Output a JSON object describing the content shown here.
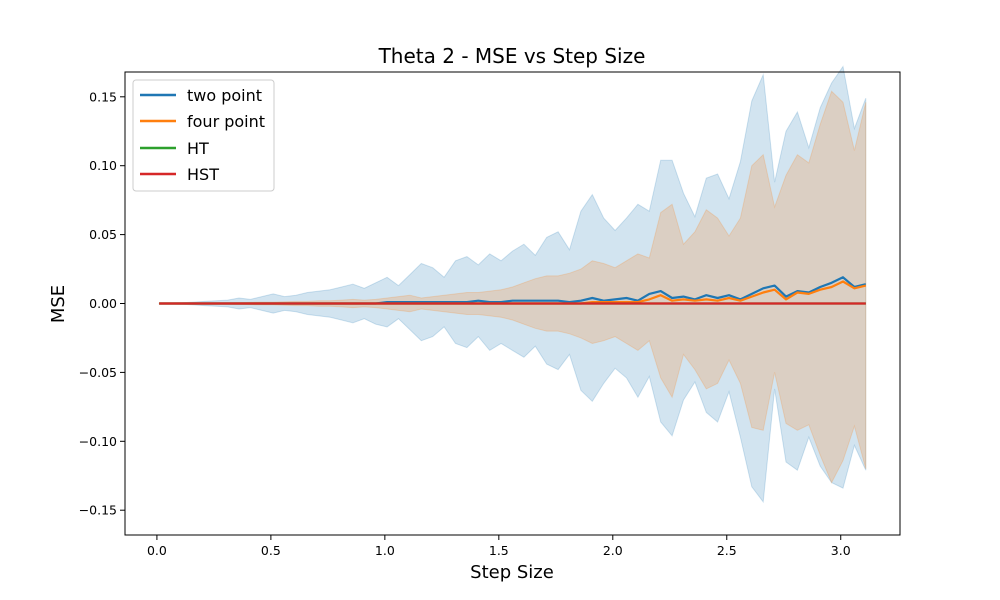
{
  "chart_data": {
    "type": "line",
    "title": "Theta 2 - MSE vs Step Size",
    "xlabel": "Step Size",
    "ylabel": "MSE",
    "xlim": [
      -0.14,
      3.26
    ],
    "ylim": [
      -0.168,
      0.168
    ],
    "xticks": [
      0.0,
      0.5,
      1.0,
      1.5,
      2.0,
      2.5,
      3.0
    ],
    "xtick_labels": [
      "0.0",
      "0.5",
      "1.0",
      "1.5",
      "2.0",
      "2.5",
      "3.0"
    ],
    "yticks": [
      -0.15,
      -0.1,
      -0.05,
      0.0,
      0.05,
      0.1,
      0.15
    ],
    "ytick_labels": [
      "−0.15",
      "−0.10",
      "−0.05",
      "0.00",
      "0.05",
      "0.10",
      "0.15"
    ],
    "grid": false,
    "legend_position": "upper-left",
    "x": [
      0.01,
      0.06,
      0.11,
      0.16,
      0.21,
      0.26,
      0.31,
      0.36,
      0.41,
      0.46,
      0.51,
      0.56,
      0.61,
      0.66,
      0.71,
      0.76,
      0.81,
      0.86,
      0.91,
      0.96,
      1.01,
      1.06,
      1.11,
      1.16,
      1.21,
      1.26,
      1.31,
      1.36,
      1.41,
      1.46,
      1.51,
      1.56,
      1.61,
      1.66,
      1.71,
      1.76,
      1.81,
      1.86,
      1.91,
      1.96,
      2.01,
      2.06,
      2.11,
      2.16,
      2.21,
      2.26,
      2.31,
      2.36,
      2.41,
      2.46,
      2.51,
      2.56,
      2.61,
      2.66,
      2.71,
      2.76,
      2.81,
      2.86,
      2.91,
      2.96,
      3.01,
      3.06,
      3.11
    ],
    "series": [
      {
        "name": "two point",
        "color": "#1f77b4",
        "values": [
          0,
          0,
          0,
          0,
          0,
          0,
          0,
          0,
          0,
          0,
          0,
          0,
          0,
          0,
          0,
          0,
          0,
          0,
          0,
          0,
          0.001,
          0.001,
          0.001,
          0.001,
          0.001,
          0.001,
          0.001,
          0.001,
          0.002,
          0.001,
          0.001,
          0.002,
          0.002,
          0.002,
          0.002,
          0.002,
          0.001,
          0.002,
          0.004,
          0.002,
          0.003,
          0.004,
          0.002,
          0.007,
          0.009,
          0.004,
          0.005,
          0.003,
          0.006,
          0.004,
          0.006,
          0.003,
          0.007,
          0.011,
          0.013,
          0.005,
          0.009,
          0.008,
          0.012,
          0.015,
          0.019,
          0.012,
          0.014
        ],
        "band": [
          0.0002,
          0.0003,
          0.0005,
          0.001,
          0.0015,
          0.002,
          0.0025,
          0.004,
          0.003,
          0.005,
          0.007,
          0.005,
          0.006,
          0.008,
          0.009,
          0.01,
          0.012,
          0.014,
          0.011,
          0.015,
          0.018,
          0.012,
          0.02,
          0.028,
          0.025,
          0.018,
          0.03,
          0.033,
          0.026,
          0.035,
          0.03,
          0.036,
          0.041,
          0.033,
          0.046,
          0.05,
          0.038,
          0.065,
          0.075,
          0.06,
          0.05,
          0.058,
          0.07,
          0.06,
          0.095,
          0.1,
          0.075,
          0.06,
          0.085,
          0.09,
          0.07,
          0.1,
          0.14,
          0.155,
          0.075,
          0.12,
          0.13,
          0.105,
          0.13,
          0.145,
          0.153,
          0.115,
          0.135
        ]
      },
      {
        "name": "four point",
        "color": "#ff7f0e",
        "values": [
          0,
          0,
          0,
          0,
          0,
          0,
          0,
          0,
          0,
          0,
          0,
          0,
          0,
          0,
          0,
          0,
          0,
          0,
          0,
          0,
          0,
          0,
          0,
          0,
          0,
          0,
          0,
          0,
          0,
          0,
          0,
          0,
          0,
          0,
          0,
          0,
          0,
          0,
          0.001,
          0.001,
          0.001,
          0.001,
          0.001,
          0.003,
          0.006,
          0.002,
          0.003,
          0.002,
          0.003,
          0.002,
          0.004,
          0.002,
          0.005,
          0.008,
          0.01,
          0.003,
          0.008,
          0.007,
          0.01,
          0.012,
          0.016,
          0.011,
          0.013
        ],
        "band": [
          0,
          0,
          0,
          0,
          0,
          0.0002,
          0.0003,
          0.0005,
          0.0008,
          0.001,
          0.001,
          0.0012,
          0.0015,
          0.0015,
          0.002,
          0.002,
          0.0025,
          0.003,
          0.0025,
          0.003,
          0.004,
          0.005,
          0.006,
          0.004,
          0.005,
          0.006,
          0.007,
          0.008,
          0.008,
          0.009,
          0.01,
          0.012,
          0.015,
          0.018,
          0.02,
          0.02,
          0.022,
          0.025,
          0.03,
          0.028,
          0.025,
          0.03,
          0.035,
          0.03,
          0.06,
          0.07,
          0.04,
          0.05,
          0.065,
          0.06,
          0.045,
          0.06,
          0.095,
          0.1,
          0.06,
          0.09,
          0.1,
          0.095,
          0.12,
          0.142,
          0.13,
          0.1,
          0.133
        ]
      },
      {
        "name": "HT",
        "color": "#2ca02c",
        "values": [
          0,
          0,
          0,
          0,
          0,
          0,
          0,
          0,
          0,
          0,
          0,
          0,
          0,
          0,
          0,
          0,
          0,
          0,
          0,
          0,
          0,
          0,
          0,
          0,
          0,
          0,
          0,
          0,
          0,
          0,
          0,
          0,
          0,
          0,
          0,
          0,
          0,
          0,
          0,
          0,
          0,
          0,
          0,
          0,
          0,
          0,
          0,
          0,
          0,
          0,
          0,
          0,
          0,
          0,
          0,
          0,
          0,
          0,
          0,
          0,
          0,
          0,
          0
        ]
      },
      {
        "name": "HST",
        "color": "#d62728",
        "values": [
          0,
          0,
          0,
          0,
          0,
          0,
          0,
          0,
          0,
          0,
          0,
          0,
          0,
          0,
          0,
          0,
          0,
          0,
          0,
          0,
          0,
          0,
          0,
          0,
          0,
          0,
          0,
          0,
          0,
          0,
          0,
          0,
          0,
          0,
          0,
          0,
          0,
          0,
          0,
          0,
          0,
          0,
          0,
          0,
          0,
          0,
          0,
          0,
          0,
          0,
          0,
          0,
          0,
          0,
          0,
          0,
          0,
          0,
          0,
          0,
          0,
          0,
          0
        ]
      }
    ]
  }
}
